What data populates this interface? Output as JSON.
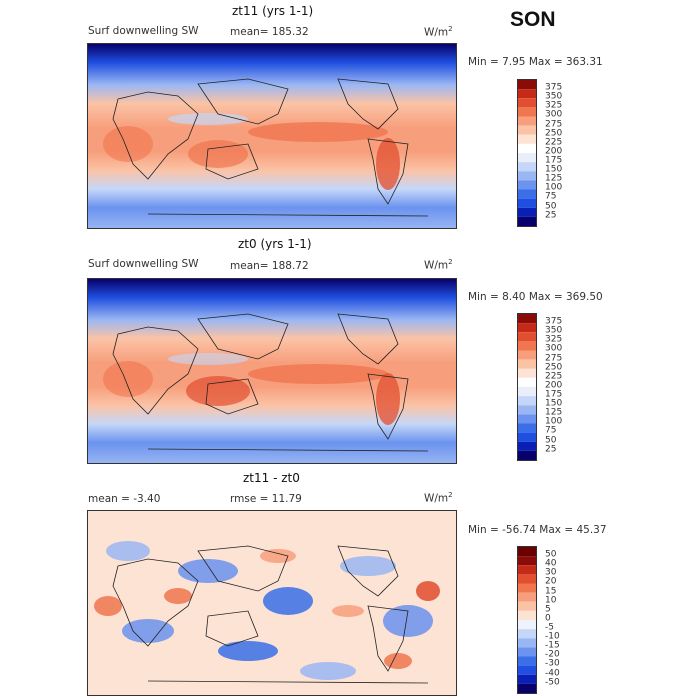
{
  "season": "SON",
  "panels": [
    {
      "title": "zt11 (yrs 1-1)",
      "variable": "Surf downwelling SW",
      "mean_text": "mean= 185.32",
      "units": "W/m",
      "units_sup": "2",
      "minmax_text": "Min =    7.95 Max = 363.31",
      "colorbar_labels": [
        "375",
        "350",
        "325",
        "300",
        "275",
        "250",
        "225",
        "200",
        "175",
        "150",
        "125",
        "100",
        "75",
        "50",
        "25"
      ]
    },
    {
      "title": "zt0 (yrs 1-1)",
      "variable": "Surf downwelling SW",
      "mean_text": "mean= 188.72",
      "units": "W/m",
      "units_sup": "2",
      "minmax_text": "Min =    8.40 Max = 369.50",
      "colorbar_labels": [
        "375",
        "350",
        "325",
        "300",
        "275",
        "250",
        "225",
        "200",
        "175",
        "150",
        "125",
        "100",
        "75",
        "50",
        "25"
      ]
    },
    {
      "title": "zt11 - zt0",
      "mean_text": "mean =   -3.40",
      "rmse_text": "rmse =  11.79",
      "units": "W/m",
      "units_sup": "2",
      "minmax_text": "Min = -56.74 Max =  45.37",
      "colorbar_labels": [
        "50",
        "40",
        "30",
        "20",
        "15",
        "10",
        "5",
        "0",
        "-5",
        "-10",
        "-15",
        "-20",
        "-30",
        "-40",
        "-50"
      ]
    }
  ],
  "chart_data": [
    {
      "type": "heatmap",
      "title": "zt11 (yrs 1-1)",
      "field": "Surf downwelling SW",
      "units": "W/m^2",
      "mean": 185.32,
      "min": 7.95,
      "max": 363.31,
      "colorbar_levels": [
        25,
        50,
        75,
        100,
        125,
        150,
        175,
        200,
        225,
        250,
        275,
        300,
        325,
        350,
        375
      ],
      "colorbar_colors": [
        "#08006b",
        "#0a1fb3",
        "#1f4fe0",
        "#3b6fe8",
        "#6b93ef",
        "#9bb7f3",
        "#c5d7f8",
        "#e9eefa",
        "#fde3d4",
        "#fbc3a6",
        "#f79f7c",
        "#f07650",
        "#e14f30",
        "#c42a17",
        "#8a0c08",
        "#6b0000"
      ]
    },
    {
      "type": "heatmap",
      "title": "zt0 (yrs 1-1)",
      "field": "Surf downwelling SW",
      "units": "W/m^2",
      "mean": 188.72,
      "min": 8.4,
      "max": 369.5,
      "colorbar_levels": [
        25,
        50,
        75,
        100,
        125,
        150,
        175,
        200,
        225,
        250,
        275,
        300,
        325,
        350,
        375
      ],
      "colorbar_colors": [
        "#08006b",
        "#0a1fb3",
        "#1f4fe0",
        "#3b6fe8",
        "#6b93ef",
        "#9bb7f3",
        "#c5d7f8",
        "#e9eefa",
        "#fde3d4",
        "#fbc3a6",
        "#f79f7c",
        "#f07650",
        "#e14f30",
        "#c42a17",
        "#8a0c08",
        "#6b0000"
      ]
    },
    {
      "type": "heatmap",
      "title": "zt11 - zt0",
      "units": "W/m^2",
      "mean": -3.4,
      "rmse": 11.79,
      "min": -56.74,
      "max": 45.37,
      "colorbar_levels": [
        -50,
        -40,
        -30,
        -20,
        -15,
        -10,
        -5,
        0,
        5,
        10,
        15,
        20,
        30,
        40,
        50
      ],
      "colorbar_colors": [
        "#08006b",
        "#0a1fb3",
        "#1f4fe0",
        "#3b6fe8",
        "#6b93ef",
        "#9bb7f3",
        "#c5d7f8",
        "#eef2fb",
        "#fde3d4",
        "#fbc3a6",
        "#f79f7c",
        "#f07650",
        "#e14f30",
        "#c42a17",
        "#8a0c08",
        "#6b0000"
      ]
    }
  ]
}
